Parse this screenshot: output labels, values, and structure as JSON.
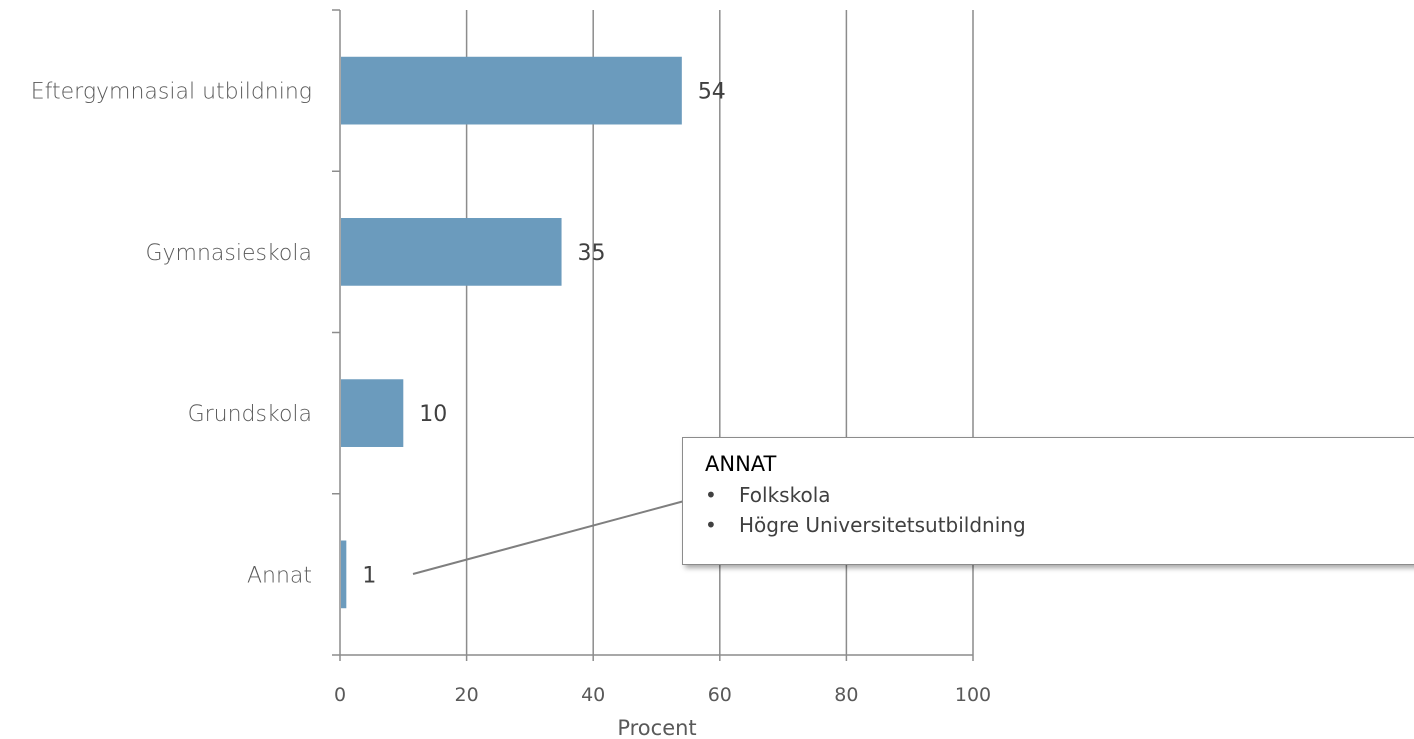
{
  "chart_data": {
    "type": "bar",
    "orientation": "horizontal",
    "categories": [
      "Eftergymnasial utbildning",
      "Gymnasieskola",
      "Grundskola",
      "Annat"
    ],
    "values": [
      54,
      35,
      10,
      1
    ],
    "data_labels": [
      "54",
      "35",
      "10",
      "1"
    ],
    "xlabel": "Procent",
    "ylabel": "",
    "xlim": [
      0,
      100
    ],
    "xticks": [
      "0",
      "20",
      "40",
      "60",
      "80",
      "100"
    ],
    "grid": "vertical",
    "bar_color": "#6b9bbd"
  },
  "callout": {
    "title": "ANNAT",
    "items": [
      "Folkskola",
      "Högre Universitetsutbildning"
    ]
  }
}
